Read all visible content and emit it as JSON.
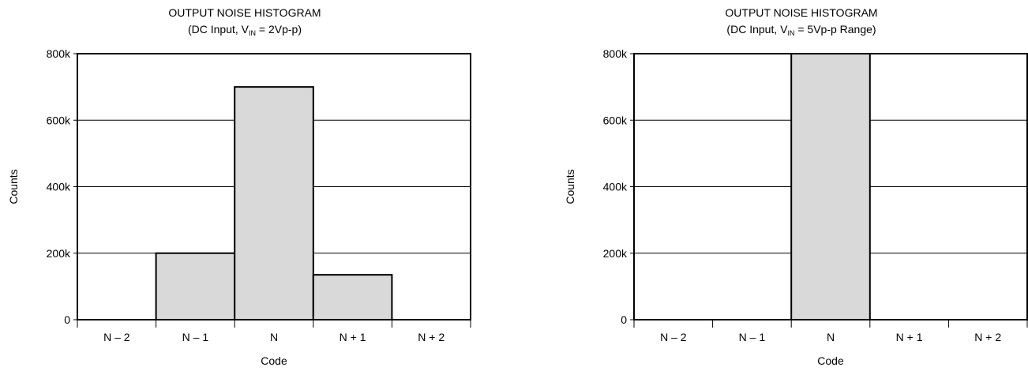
{
  "chart_data": [
    {
      "type": "bar",
      "title": "OUTPUT NOISE HISTOGRAM",
      "subtitle": {
        "prefix": "(DC Input, V",
        "subscript": "IN",
        "suffix": " = 2Vp-p)"
      },
      "xlabel": "Code",
      "ylabel": "Counts",
      "categories": [
        "N – 2",
        "N – 1",
        "N",
        "N + 1",
        "N + 2"
      ],
      "values": [
        0,
        200000,
        700000,
        135000,
        0
      ],
      "ylim": [
        0,
        800000
      ],
      "yticks": [
        0,
        200000,
        400000,
        600000,
        800000
      ],
      "ytick_labels": [
        "0",
        "200k",
        "400k",
        "600k",
        "800k"
      ],
      "grid": true,
      "bar_color": "#d9d9d9"
    },
    {
      "type": "bar",
      "title": "OUTPUT NOISE HISTOGRAM",
      "subtitle": {
        "prefix": "(DC Input, V",
        "subscript": "IN",
        "suffix": " = 5Vp-p Range)"
      },
      "xlabel": "Code",
      "ylabel": "Counts",
      "categories": [
        "N – 2",
        "N – 1",
        "N",
        "N + 1",
        "N + 2"
      ],
      "values": [
        0,
        0,
        800000,
        0,
        0
      ],
      "ylim": [
        0,
        800000
      ],
      "yticks": [
        0,
        200000,
        400000,
        600000,
        800000
      ],
      "ytick_labels": [
        "0",
        "200k",
        "400k",
        "600k",
        "800k"
      ],
      "grid": true,
      "bar_color": "#d9d9d9"
    }
  ]
}
